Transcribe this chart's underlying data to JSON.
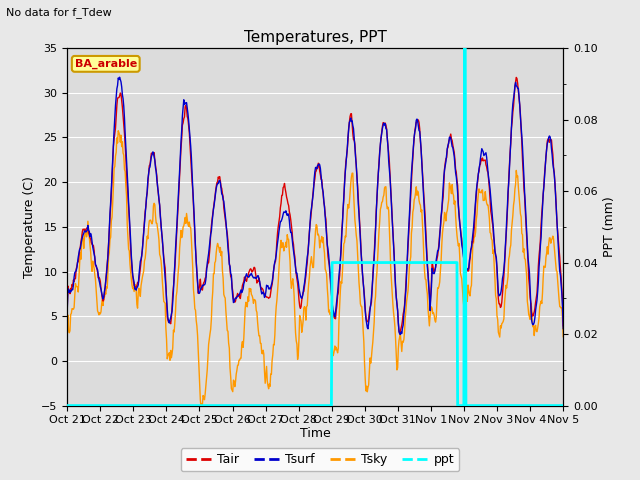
{
  "title": "Temperatures, PPT",
  "subtitle": "No data for f_Tdew",
  "label_box": "BA_arable",
  "xlabel": "Time",
  "ylabel_left": "Temperature (C)",
  "ylabel_right": "PPT (mm)",
  "ylim_left": [
    -5,
    35
  ],
  "ylim_right": [
    0.0,
    0.1
  ],
  "facecolor": "#e8e8e8",
  "plot_facecolor": "#dcdcdc",
  "colors_Tair": "#dd0000",
  "colors_Tsurf": "#0000cc",
  "colors_Tsky": "#ff9900",
  "colors_ppt": "#00ffff",
  "xtick_labels": [
    "Oct 21",
    "Oct 22",
    "Oct 23",
    "Oct 24",
    "Oct 25",
    "Oct 26",
    "Oct 27",
    "Oct 28",
    "Oct 29",
    "Oct 30",
    "Oct 31",
    "Nov 1",
    "Nov 2",
    "Nov 3",
    "Nov 4",
    "Nov 5"
  ],
  "yticks_left": [
    -5,
    0,
    5,
    10,
    15,
    20,
    25,
    30,
    35
  ],
  "yticks_right": [
    0.0,
    0.02,
    0.04,
    0.06,
    0.08,
    0.1
  ],
  "n_days": 15,
  "figwidth": 6.4,
  "figheight": 4.8,
  "dpi": 100
}
